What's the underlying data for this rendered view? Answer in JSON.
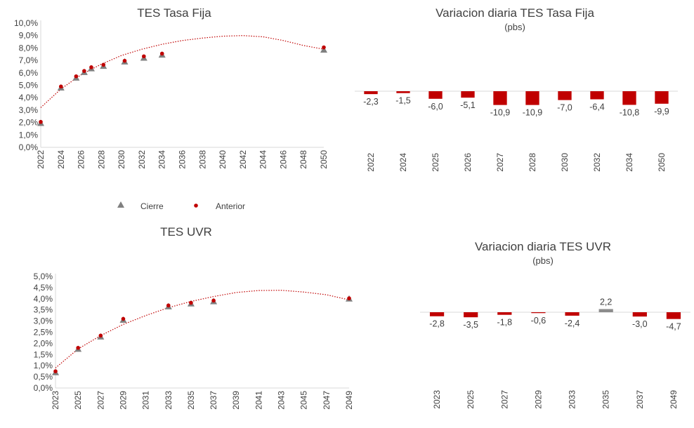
{
  "chart_data": [
    {
      "type": "scatter",
      "title": "TES Tasa Fija",
      "legend": [
        "Cierre",
        "Anterior"
      ],
      "x_ticks": [
        "2022",
        "2024",
        "2026",
        "2028",
        "2030",
        "2032",
        "2034",
        "2036",
        "2038",
        "2040",
        "2042",
        "2044",
        "2046",
        "2048",
        "2050"
      ],
      "y_ticks": [
        "0,0%",
        "1,0%",
        "2,0%",
        "3,0%",
        "4,0%",
        "5,0%",
        "6,0%",
        "7,0%",
        "8,0%",
        "9,0%",
        "10,0%"
      ],
      "xlim": [
        2022,
        2050
      ],
      "ylim": [
        0,
        10
      ],
      "series": [
        {
          "name": "Cierre",
          "x": [
            2022,
            2024,
            2025.5,
            2026.3,
            2027,
            2028.2,
            2030.3,
            2032.2,
            2034,
            2050
          ],
          "y": [
            1.95,
            4.8,
            5.6,
            6.05,
            6.35,
            6.55,
            6.9,
            7.2,
            7.45,
            7.85
          ]
        },
        {
          "name": "Anterior",
          "x": [
            2022,
            2024,
            2025.5,
            2026.3,
            2027,
            2028.2,
            2030.3,
            2032.2,
            2034,
            2050
          ],
          "y": [
            2.05,
            4.9,
            5.72,
            6.15,
            6.45,
            6.65,
            6.97,
            7.33,
            7.55,
            8.05
          ]
        },
        {
          "name": "trend",
          "x": [
            2022,
            2024,
            2026,
            2028,
            2030,
            2032,
            2034,
            2036,
            2038,
            2040,
            2042,
            2044,
            2046,
            2048,
            2050
          ],
          "y": [
            3.2,
            4.7,
            5.85,
            6.7,
            7.4,
            7.9,
            8.3,
            8.6,
            8.8,
            8.95,
            9.0,
            8.9,
            8.6,
            8.2,
            7.9
          ]
        }
      ]
    },
    {
      "type": "bar",
      "title": "Variacion diaria TES Tasa Fija",
      "subtitle": "(pbs)",
      "categories": [
        "2022",
        "2024",
        "2025",
        "2026",
        "2027",
        "2028",
        "2030",
        "2032",
        "2034",
        "2050"
      ],
      "values": [
        -2.3,
        -1.5,
        -6.0,
        -5.1,
        -10.9,
        -10.9,
        -7.0,
        -6.4,
        -10.8,
        -9.9
      ],
      "labels": [
        "-2,3",
        "-1,5",
        "-6,0",
        "-5,1",
        "-10,9",
        "-10,9",
        "-7,0",
        "-6,4",
        "-10,8",
        "-9,9"
      ]
    },
    {
      "type": "scatter",
      "title": "TES UVR",
      "x_ticks": [
        "2023",
        "2025",
        "2027",
        "2029",
        "2031",
        "2033",
        "2035",
        "2037",
        "2039",
        "2041",
        "2043",
        "2045",
        "2047",
        "2049"
      ],
      "y_ticks": [
        "0,0%",
        "0,5%",
        "1,0%",
        "1,5%",
        "2,0%",
        "2,5%",
        "3,0%",
        "3,5%",
        "4,0%",
        "4,5%",
        "5,0%"
      ],
      "xlim": [
        2023,
        2049
      ],
      "ylim": [
        0,
        5
      ],
      "series": [
        {
          "name": "Cierre",
          "x": [
            2023,
            2025,
            2027,
            2029,
            2033,
            2035,
            2037,
            2049
          ],
          "y": [
            0.7,
            1.75,
            2.3,
            3.05,
            3.65,
            3.78,
            3.88,
            4.0
          ]
        },
        {
          "name": "Anterior",
          "x": [
            2023,
            2025,
            2027,
            2029,
            2033,
            2035,
            2037,
            2049
          ],
          "y": [
            0.75,
            1.8,
            2.35,
            3.1,
            3.7,
            3.82,
            3.92,
            4.02
          ]
        },
        {
          "name": "trend",
          "x": [
            2023,
            2025,
            2027,
            2029,
            2031,
            2033,
            2035,
            2037,
            2039,
            2041,
            2043,
            2045,
            2047,
            2049
          ],
          "y": [
            0.9,
            1.75,
            2.35,
            2.85,
            3.25,
            3.6,
            3.88,
            4.1,
            4.28,
            4.37,
            4.38,
            4.3,
            4.18,
            3.95
          ]
        }
      ]
    },
    {
      "type": "bar",
      "title": "Variacion diaria TES UVR",
      "subtitle": "(pbs)",
      "categories": [
        "2023",
        "2025",
        "2027",
        "2029",
        "2033",
        "2035",
        "2037",
        "2049"
      ],
      "values": [
        -2.8,
        -3.5,
        -1.8,
        -0.6,
        -2.4,
        2.2,
        -3.0,
        -4.7
      ],
      "labels": [
        "-2,8",
        "-3,5",
        "-1,8",
        "-0,6",
        "-2,4",
        "2,2",
        "-3,0",
        "-4,7"
      ]
    }
  ],
  "colors": {
    "cierre": "#808080",
    "anterior": "#c00000",
    "bar_negative": "#c00000",
    "bar_positive": "#8c8c8c",
    "axis": "#d9d9d9",
    "text": "#404040"
  }
}
